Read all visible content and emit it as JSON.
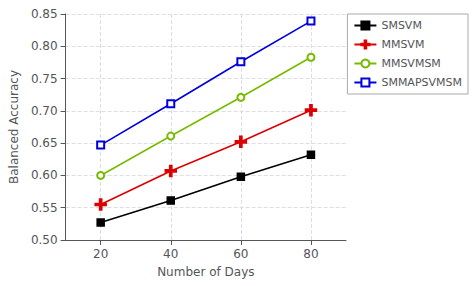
{
  "chart_data": {
    "type": "line",
    "xlabel": "Number of Days",
    "ylabel": "Balanced Accuracy",
    "x": [
      20,
      40,
      60,
      80
    ],
    "series": [
      {
        "name": "SMSVM",
        "color": "#000000",
        "marker": "square",
        "values": [
          0.527,
          0.561,
          0.598,
          0.632
        ]
      },
      {
        "name": "MMSVM",
        "color": "#dd0000",
        "marker": "plus",
        "values": [
          0.555,
          0.607,
          0.652,
          0.701
        ]
      },
      {
        "name": "MMSVMSM",
        "color": "#77bb00",
        "marker": "open-circle",
        "values": [
          0.6,
          0.661,
          0.721,
          0.783
        ]
      },
      {
        "name": "SMMAPSVMSM",
        "color": "#0000dd",
        "marker": "open-square",
        "values": [
          0.647,
          0.711,
          0.776,
          0.839
        ]
      }
    ],
    "xlim": [
      10,
      90
    ],
    "ylim": [
      0.5,
      0.85
    ],
    "xticks": [
      20,
      40,
      60,
      80
    ],
    "yticks": [
      {
        "value": 0.5,
        "label": "0.50"
      },
      0.55,
      {
        "value": 0.6,
        "label": "0.60"
      },
      0.65,
      {
        "value": 0.7,
        "label": "0.70"
      },
      0.75,
      {
        "value": 0.8,
        "label": "0.80"
      },
      0.85
    ],
    "grid": true,
    "legend": "right"
  }
}
